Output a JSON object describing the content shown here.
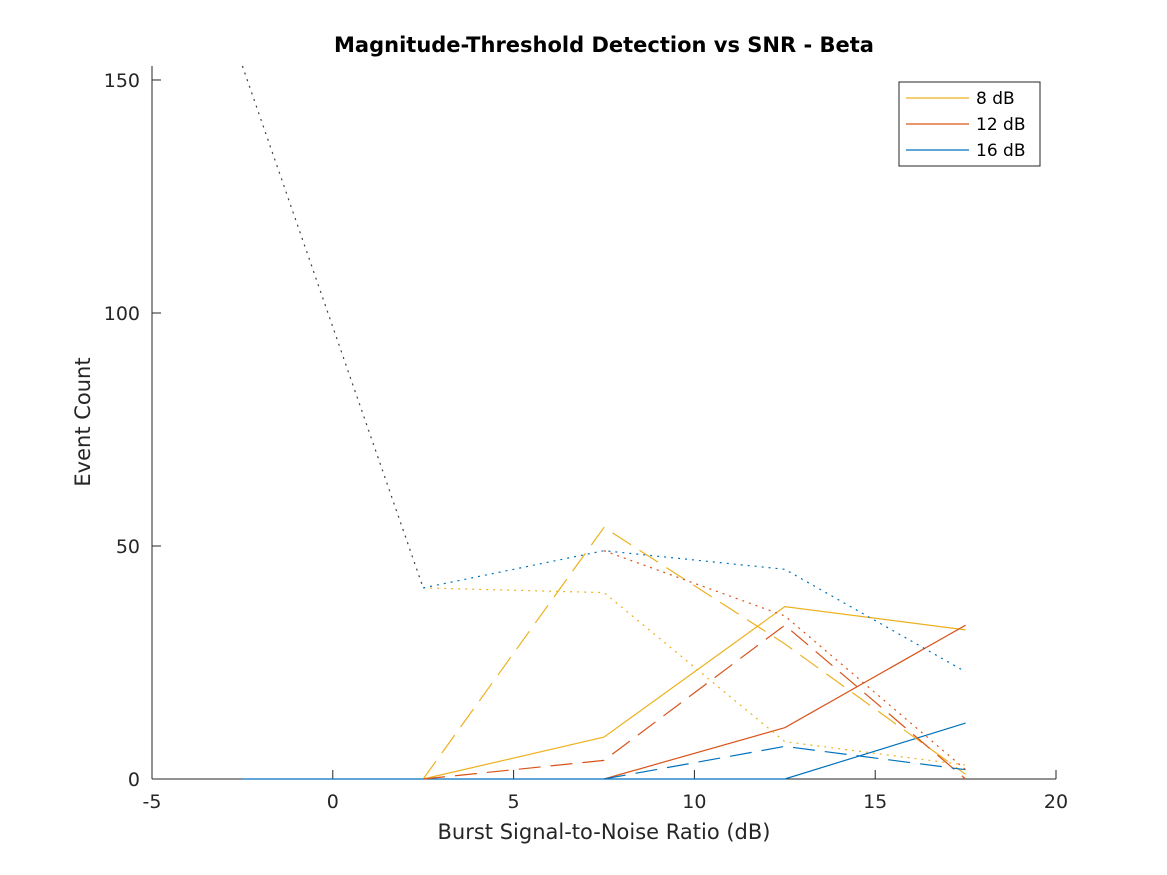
{
  "chart_data": {
    "type": "line",
    "title": "Magnitude-Threshold Detection vs SNR - Beta",
    "xlabel": "Burst Signal-to-Noise Ratio (dB)",
    "ylabel": "Event Count",
    "xlim": [
      -5,
      20
    ],
    "ylim": [
      0,
      153
    ],
    "xticks": [
      -5,
      0,
      5,
      10,
      15,
      20
    ],
    "yticks": [
      0,
      50,
      100,
      150
    ],
    "legend": {
      "location": "top-right",
      "entries": [
        "8 dB",
        "12 dB",
        "16 dB"
      ]
    },
    "colors": {
      "8 dB": "#EDB120",
      "12 dB": "#D95319",
      "16 dB": "#0072BD",
      "reference": "#404040"
    },
    "series": [
      {
        "name": "8 dB",
        "group": "8 dB",
        "style": "solid",
        "x": [
          2.5,
          7.5,
          12.5,
          17.5
        ],
        "y": [
          0,
          9,
          37,
          32
        ]
      },
      {
        "name": "12 dB",
        "group": "12 dB",
        "style": "solid",
        "x": [
          7.5,
          12.5,
          17.5
        ],
        "y": [
          0,
          11,
          33
        ]
      },
      {
        "name": "16 dB",
        "group": "16 dB",
        "style": "solid",
        "x": [
          -2.5,
          12.5,
          17.5
        ],
        "y": [
          0,
          0,
          12
        ]
      },
      {
        "group": "8 dB",
        "style": "dashed",
        "x": [
          2.5,
          7.5,
          12.5,
          17.5
        ],
        "y": [
          0,
          54,
          29,
          1
        ]
      },
      {
        "group": "12 dB",
        "style": "dashed",
        "x": [
          2.5,
          7.5,
          12.5,
          17.5
        ],
        "y": [
          0,
          4,
          33,
          0
        ]
      },
      {
        "group": "16 dB",
        "style": "dashed",
        "x": [
          7.5,
          12.5,
          17.5
        ],
        "y": [
          0,
          7,
          2
        ]
      },
      {
        "group": "8 dB",
        "style": "dotted",
        "x": [
          2.5,
          7.5,
          12.5,
          17.5
        ],
        "y": [
          41,
          40,
          8,
          3
        ]
      },
      {
        "group": "12 dB",
        "style": "dotted",
        "x": [
          7.5,
          12.5,
          17.5
        ],
        "y": [
          49,
          35,
          2
        ]
      },
      {
        "group": "16 dB",
        "style": "dotted",
        "x": [
          2.5,
          7.5,
          12.5,
          17.5
        ],
        "y": [
          41,
          49,
          45,
          23
        ]
      },
      {
        "group": "reference",
        "style": "dotted",
        "x": [
          -2.5,
          2.5
        ],
        "y": [
          153,
          41
        ]
      }
    ]
  }
}
